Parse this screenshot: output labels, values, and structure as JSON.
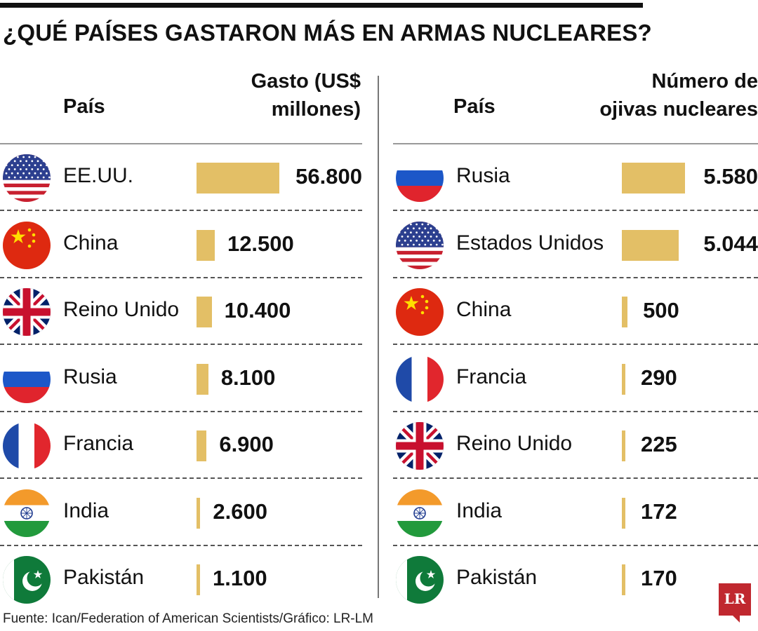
{
  "title": "¿QUÉ PAÍSES GASTARON MÁS EN ARMAS NUCLEARES?",
  "colors": {
    "bar": "#e3bf66",
    "logo": "#c0282f"
  },
  "chart_data": [
    {
      "type": "bar",
      "country_header": "País",
      "value_header_lines": [
        "Gasto (US$",
        "millones)"
      ],
      "categories": [
        "EE.UU.",
        "China",
        "Reino Unido",
        "Rusia",
        "Francia",
        "India",
        "Pakistán"
      ],
      "flags": [
        "usa-flag-icon",
        "china-flag-icon",
        "uk-flag-icon",
        "russia-flag-icon",
        "france-flag-icon",
        "india-flag-icon",
        "pakistan-flag-icon"
      ],
      "values": [
        56800,
        12500,
        10400,
        8100,
        6900,
        2600,
        1100
      ],
      "labels": [
        "56.800",
        "12.500",
        "10.400",
        "8.100",
        "6.900",
        "2.600",
        "1.100"
      ]
    },
    {
      "type": "bar",
      "country_header": "País",
      "value_header_lines": [
        "Número de",
        "ojivas nucleares"
      ],
      "categories": [
        "Rusia",
        "Estados Unidos",
        "China",
        "Francia",
        "Reino Unido",
        "India",
        "Pakistán"
      ],
      "flags": [
        "russia-flag-icon",
        "usa-flag-icon",
        "china-flag-icon",
        "france-flag-icon",
        "uk-flag-icon",
        "india-flag-icon",
        "pakistan-flag-icon"
      ],
      "values": [
        5580,
        5044,
        500,
        290,
        225,
        172,
        170
      ],
      "labels": [
        "5.580",
        "5.044",
        "500",
        "290",
        "225",
        "172",
        "170"
      ]
    }
  ],
  "footer": "Fuente: Ican/Federation of American Scientists/Gráfico: LR-LM",
  "logo_text": "LR"
}
